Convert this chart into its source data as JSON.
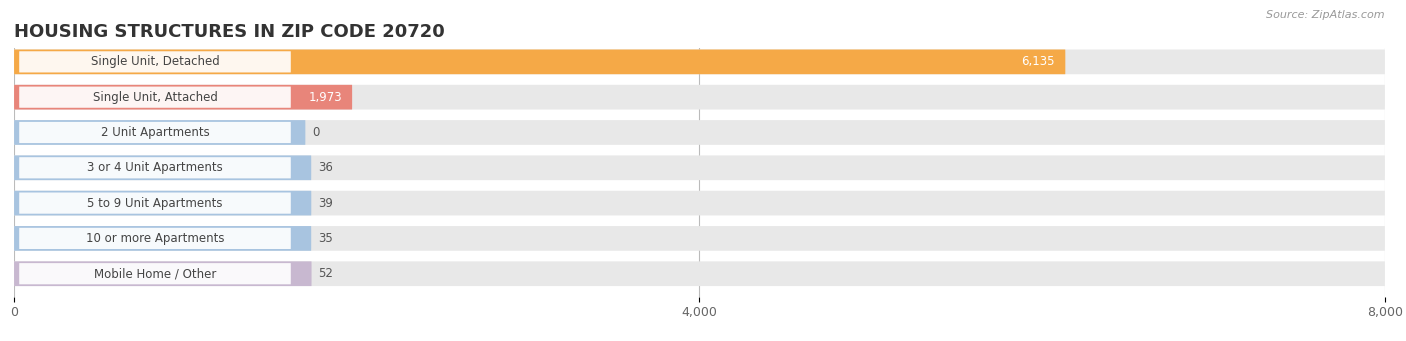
{
  "title": "HOUSING STRUCTURES IN ZIP CODE 20720",
  "source": "Source: ZipAtlas.com",
  "categories": [
    "Single Unit, Detached",
    "Single Unit, Attached",
    "2 Unit Apartments",
    "3 or 4 Unit Apartments",
    "5 to 9 Unit Apartments",
    "10 or more Apartments",
    "Mobile Home / Other"
  ],
  "values": [
    6135,
    1973,
    0,
    36,
    39,
    35,
    52
  ],
  "bar_colors": [
    "#f5a947",
    "#e8857a",
    "#a8c4e0",
    "#a8c4e0",
    "#a8c4e0",
    "#a8c4e0",
    "#c8b8d0"
  ],
  "bg_track_color": "#e8e8e8",
  "xlim_max": 8000,
  "xticks": [
    0,
    4000,
    8000
  ],
  "title_fontsize": 13,
  "label_fontsize": 8.5,
  "value_fontsize": 8.5,
  "background_color": "#ffffff",
  "figsize": [
    14.06,
    3.41
  ],
  "dpi": 100
}
